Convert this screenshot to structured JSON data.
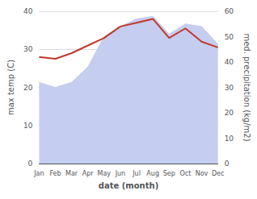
{
  "chart_data": {
    "type": "line",
    "xlabel": "date (month)",
    "ylabel": "max temp (C)",
    "y2label": "med. precipitation (kg/m2)",
    "categories": [
      "Jan",
      "Feb",
      "Mar",
      "Apr",
      "May",
      "Jun",
      "Jul",
      "Aug",
      "Sep",
      "Oct",
      "Nov",
      "Dec"
    ],
    "series": [
      {
        "type": "area",
        "axis": "y2",
        "color": "#c5cdf0",
        "values": [
          32,
          30,
          32,
          38,
          50,
          54,
          57,
          58,
          51,
          55,
          54,
          47
        ]
      },
      {
        "type": "line",
        "color": "#c0392b",
        "values": [
          28,
          27.5,
          29,
          31,
          33,
          36,
          37,
          38,
          33,
          35.5,
          32,
          30.5
        ]
      }
    ],
    "ylim": [
      0,
      40
    ],
    "yticks": [
      0,
      10,
      20,
      30,
      40
    ],
    "y2lim": [
      0,
      60
    ],
    "y2ticks": [
      0,
      10,
      20,
      30,
      40,
      50,
      60
    ],
    "grid": true
  }
}
